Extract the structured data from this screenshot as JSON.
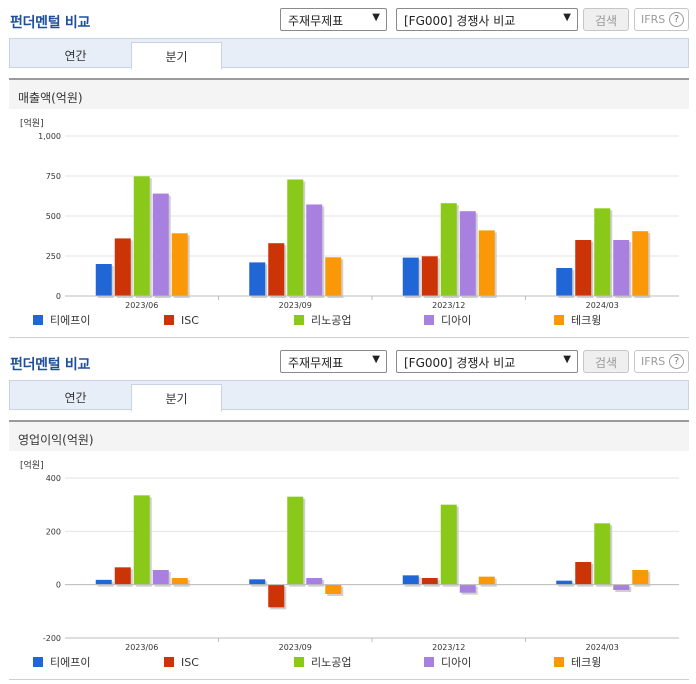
{
  "common": {
    "title": "펀더멘털 비교",
    "dropdown1": "주재무제표",
    "dropdown2": "[FG000] 경쟁사 비교",
    "search_button": "검색",
    "ifrs_label": "IFRS",
    "ifrs_help": "?",
    "tabs": [
      {
        "label": "연간",
        "active": false
      },
      {
        "label": "분기",
        "active": true
      }
    ],
    "colors": [
      "#2166d6",
      "#cc3306",
      "#8ac919",
      "#a880e0",
      "#fa9808"
    ]
  },
  "chart_data": [
    {
      "type": "bar",
      "title": "매출액(억원)",
      "unit_label": "[억원]",
      "categories": [
        "2023/06",
        "2023/09",
        "2023/12",
        "2024/03"
      ],
      "ylim": [
        0,
        1000
      ],
      "yticks": [
        0,
        250,
        500,
        750,
        1000
      ],
      "ytick_labels": [
        "0",
        "250",
        "500",
        "750",
        "1,000"
      ],
      "grid": true,
      "legend_position": "bottom",
      "series": [
        {
          "name": "티에프이",
          "values": [
            200,
            210,
            240,
            175
          ]
        },
        {
          "name": "ISC",
          "values": [
            360,
            330,
            248,
            350
          ]
        },
        {
          "name": "리노공업",
          "values": [
            748,
            728,
            580,
            548
          ]
        },
        {
          "name": "디아이",
          "values": [
            640,
            572,
            530,
            350
          ]
        },
        {
          "name": "테크윙",
          "values": [
            392,
            242,
            410,
            405
          ]
        }
      ]
    },
    {
      "type": "bar",
      "title": "영업이익(억원)",
      "unit_label": "[억원]",
      "categories": [
        "2023/06",
        "2023/09",
        "2023/12",
        "2024/03"
      ],
      "ylim": [
        -200,
        400
      ],
      "yticks": [
        -200,
        0,
        200,
        400
      ],
      "ytick_labels": [
        "-200",
        "0",
        "200",
        "400"
      ],
      "grid": true,
      "legend_position": "bottom",
      "series": [
        {
          "name": "티에프이",
          "values": [
            18,
            20,
            35,
            15
          ]
        },
        {
          "name": "ISC",
          "values": [
            65,
            -85,
            25,
            85
          ]
        },
        {
          "name": "리노공업",
          "values": [
            335,
            330,
            300,
            230
          ]
        },
        {
          "name": "디아이",
          "values": [
            55,
            25,
            -30,
            -20
          ]
        },
        {
          "name": "테크윙",
          "values": [
            25,
            -35,
            30,
            55
          ]
        }
      ]
    }
  ]
}
